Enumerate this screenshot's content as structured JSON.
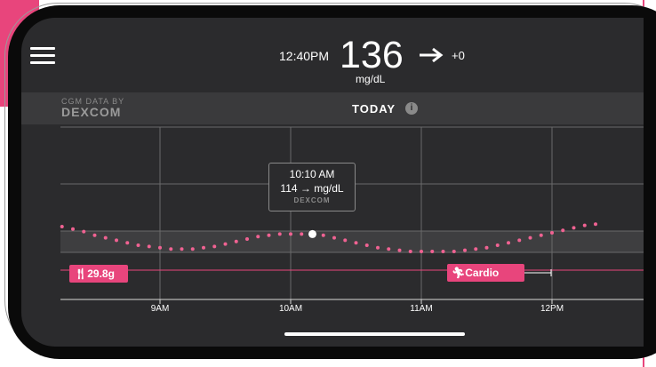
{
  "header": {
    "time": "12:40PM",
    "glucose_value": "136",
    "unit": "mg/dL",
    "trend_delta": "+0"
  },
  "banner": {
    "cgm_label": "CGM DATA BY",
    "brand": "DEXCOM",
    "title": "TODAY"
  },
  "tooltip": {
    "time": "10:10 AM",
    "value": "114 → mg/dL",
    "brand": "DEXCOM"
  },
  "events": {
    "carb_label": "29.8g",
    "exercise_label": "Cardio"
  },
  "chart_data": {
    "type": "scatter",
    "title": "",
    "xlabel": "",
    "ylabel": "",
    "x_ticks": [
      "9AM",
      "10AM",
      "11AM",
      "12PM"
    ],
    "series": [
      {
        "x": [
          "8:15",
          "8:20",
          "8:25",
          "8:30",
          "8:35",
          "8:40",
          "8:45",
          "8:50",
          "8:55",
          "9:00",
          "9:05",
          "9:10",
          "9:15",
          "9:20",
          "9:25",
          "9:30",
          "9:35",
          "9:40",
          "9:45",
          "9:50",
          "9:55",
          "10:00",
          "10:05",
          "10:10",
          "10:15",
          "10:20",
          "10:25",
          "10:30",
          "10:35",
          "10:40",
          "10:45",
          "10:50",
          "10:55",
          "11:00",
          "11:05",
          "11:10",
          "11:15",
          "11:20",
          "11:25",
          "11:30",
          "11:35",
          "11:40",
          "11:45",
          "11:50",
          "11:55",
          "12:00",
          "12:05",
          "12:10",
          "12:15",
          "12:20"
        ],
        "y": [
          120,
          118,
          116,
          113,
          111,
          109,
          107,
          105,
          104,
          103,
          102,
          102,
          102,
          103,
          104,
          106,
          108,
          110,
          112,
          113,
          114,
          114,
          114,
          114,
          113,
          111,
          109,
          107,
          105,
          103,
          102,
          101,
          100,
          100,
          100,
          100,
          100,
          101,
          102,
          103,
          105,
          107,
          109,
          111,
          113,
          115,
          117,
          119,
          121,
          122
        ]
      }
    ],
    "selected_point": {
      "x": "10:10",
      "y": 114
    },
    "target_range": "shaded band",
    "grid": true,
    "colors": {
      "points": "#f06292",
      "marker": "#e8457c",
      "background": "#2b2b2d"
    }
  }
}
